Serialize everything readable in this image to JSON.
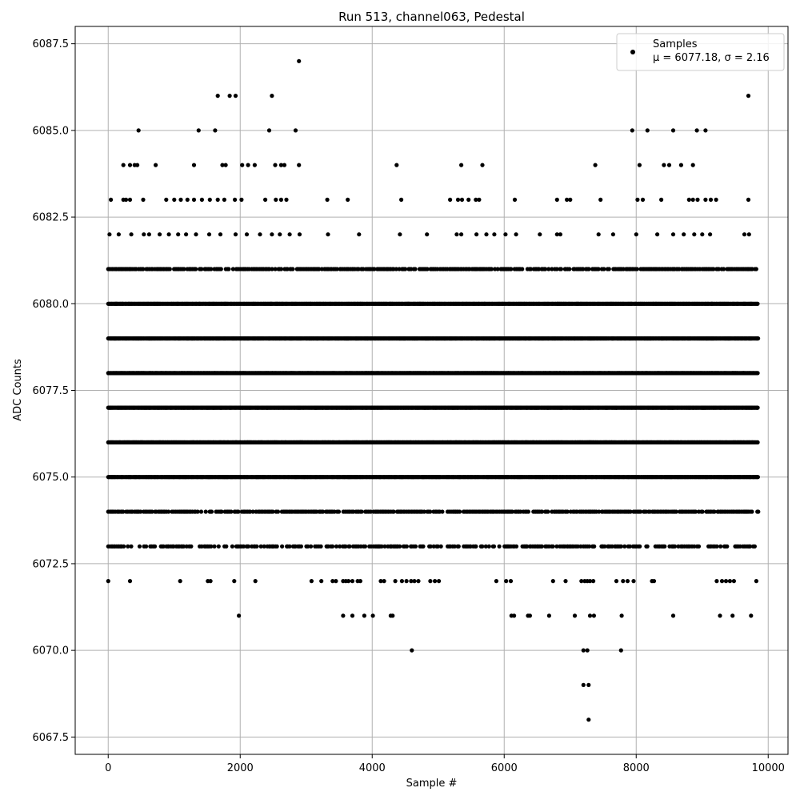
{
  "chart_data": {
    "type": "scatter",
    "title": "Run 513, channel063, Pedestal",
    "xlabel": "Sample #",
    "ylabel": "ADC Counts",
    "xlim": [
      -500,
      10300
    ],
    "ylim": [
      6067.0,
      6088.0
    ],
    "xticks": [
      0,
      2000,
      4000,
      6000,
      8000,
      10000
    ],
    "xtick_labels": [
      "0",
      "2000",
      "4000",
      "6000",
      "8000",
      "10000"
    ],
    "yticks": [
      6067.5,
      6070.0,
      6072.5,
      6075.0,
      6077.5,
      6080.0,
      6082.5,
      6085.0,
      6087.5
    ],
    "ytick_labels": [
      "6067.5",
      "6070.0",
      "6072.5",
      "6075.0",
      "6077.5",
      "6080.0",
      "6082.5",
      "6085.0",
      "6087.5"
    ],
    "grid": true,
    "legend": {
      "placement": "top-right",
      "entries": [
        {
          "line1": "Samples",
          "line2": "μ = 6077.18, σ = 2.16"
        }
      ]
    },
    "series": [
      {
        "name": "Samples",
        "color": "#000000",
        "x_range": [
          0,
          9850
        ],
        "dense_levels": [
          6073,
          6074,
          6075,
          6076,
          6077,
          6078,
          6079,
          6080,
          6081
        ],
        "points": [
          [
            0,
            6072
          ],
          [
            330,
            6072
          ],
          [
            1090,
            6072
          ],
          [
            1510,
            6072
          ],
          [
            1550,
            6072
          ],
          [
            1910,
            6072
          ],
          [
            2230,
            6072
          ],
          [
            3080,
            6072
          ],
          [
            3230,
            6072
          ],
          [
            3400,
            6072
          ],
          [
            3450,
            6072
          ],
          [
            3560,
            6072
          ],
          [
            3600,
            6072
          ],
          [
            3640,
            6072
          ],
          [
            3700,
            6072
          ],
          [
            3780,
            6072
          ],
          [
            3820,
            6072
          ],
          [
            4130,
            6072
          ],
          [
            4180,
            6072
          ],
          [
            4350,
            6072
          ],
          [
            4450,
            6072
          ],
          [
            4520,
            6072
          ],
          [
            4590,
            6072
          ],
          [
            4640,
            6072
          ],
          [
            4700,
            6072
          ],
          [
            4880,
            6072
          ],
          [
            4950,
            6072
          ],
          [
            5010,
            6072
          ],
          [
            5880,
            6072
          ],
          [
            6030,
            6072
          ],
          [
            6100,
            6072
          ],
          [
            6740,
            6072
          ],
          [
            6930,
            6072
          ],
          [
            7170,
            6072
          ],
          [
            7220,
            6072
          ],
          [
            7260,
            6072
          ],
          [
            7300,
            6072
          ],
          [
            7350,
            6072
          ],
          [
            7700,
            6072
          ],
          [
            7800,
            6072
          ],
          [
            7870,
            6072
          ],
          [
            7960,
            6072
          ],
          [
            8240,
            6072
          ],
          [
            8270,
            6072
          ],
          [
            9220,
            6072
          ],
          [
            9300,
            6072
          ],
          [
            9360,
            6072
          ],
          [
            9420,
            6072
          ],
          [
            9480,
            6072
          ],
          [
            9820,
            6072
          ],
          [
            1980,
            6071
          ],
          [
            3560,
            6071
          ],
          [
            3700,
            6071
          ],
          [
            3880,
            6071
          ],
          [
            4010,
            6071
          ],
          [
            4280,
            6071
          ],
          [
            4310,
            6071
          ],
          [
            6110,
            6071
          ],
          [
            6150,
            6071
          ],
          [
            6360,
            6071
          ],
          [
            6390,
            6071
          ],
          [
            6680,
            6071
          ],
          [
            7070,
            6071
          ],
          [
            7300,
            6071
          ],
          [
            7360,
            6071
          ],
          [
            7780,
            6071
          ],
          [
            8560,
            6071
          ],
          [
            9270,
            6071
          ],
          [
            9460,
            6071
          ],
          [
            9740,
            6071
          ],
          [
            4600,
            6070
          ],
          [
            7200,
            6070
          ],
          [
            7260,
            6070
          ],
          [
            7770,
            6070
          ],
          [
            7200,
            6069
          ],
          [
            7280,
            6069
          ],
          [
            7280,
            6068
          ],
          [
            20,
            6082
          ],
          [
            160,
            6082
          ],
          [
            350,
            6082
          ],
          [
            540,
            6082
          ],
          [
            620,
            6082
          ],
          [
            780,
            6082
          ],
          [
            920,
            6082
          ],
          [
            1060,
            6082
          ],
          [
            1180,
            6082
          ],
          [
            1330,
            6082
          ],
          [
            1530,
            6082
          ],
          [
            1700,
            6082
          ],
          [
            1930,
            6082
          ],
          [
            2100,
            6082
          ],
          [
            2300,
            6082
          ],
          [
            2480,
            6082
          ],
          [
            2600,
            6082
          ],
          [
            2750,
            6082
          ],
          [
            2900,
            6082
          ],
          [
            3330,
            6082
          ],
          [
            3800,
            6082
          ],
          [
            4420,
            6082
          ],
          [
            4830,
            6082
          ],
          [
            5280,
            6082
          ],
          [
            5350,
            6082
          ],
          [
            5580,
            6082
          ],
          [
            5730,
            6082
          ],
          [
            5850,
            6082
          ],
          [
            6020,
            6082
          ],
          [
            6180,
            6082
          ],
          [
            6540,
            6082
          ],
          [
            6800,
            6082
          ],
          [
            6850,
            6082
          ],
          [
            7430,
            6082
          ],
          [
            7650,
            6082
          ],
          [
            8000,
            6082
          ],
          [
            8320,
            6082
          ],
          [
            8560,
            6082
          ],
          [
            8720,
            6082
          ],
          [
            8880,
            6082
          ],
          [
            9000,
            6082
          ],
          [
            9120,
            6082
          ],
          [
            9640,
            6082
          ],
          [
            9710,
            6082
          ],
          [
            40,
            6083
          ],
          [
            230,
            6083
          ],
          [
            270,
            6083
          ],
          [
            330,
            6083
          ],
          [
            530,
            6083
          ],
          [
            880,
            6083
          ],
          [
            1000,
            6083
          ],
          [
            1100,
            6083
          ],
          [
            1200,
            6083
          ],
          [
            1300,
            6083
          ],
          [
            1420,
            6083
          ],
          [
            1540,
            6083
          ],
          [
            1660,
            6083
          ],
          [
            1760,
            6083
          ],
          [
            1920,
            6083
          ],
          [
            2020,
            6083
          ],
          [
            2380,
            6083
          ],
          [
            2540,
            6083
          ],
          [
            2620,
            6083
          ],
          [
            2700,
            6083
          ],
          [
            3320,
            6083
          ],
          [
            3630,
            6083
          ],
          [
            4440,
            6083
          ],
          [
            5180,
            6083
          ],
          [
            5300,
            6083
          ],
          [
            5360,
            6083
          ],
          [
            5460,
            6083
          ],
          [
            5570,
            6083
          ],
          [
            5620,
            6083
          ],
          [
            6160,
            6083
          ],
          [
            6800,
            6083
          ],
          [
            6950,
            6083
          ],
          [
            7000,
            6083
          ],
          [
            7460,
            6083
          ],
          [
            8020,
            6083
          ],
          [
            8100,
            6083
          ],
          [
            8380,
            6083
          ],
          [
            8800,
            6083
          ],
          [
            8860,
            6083
          ],
          [
            8930,
            6083
          ],
          [
            9050,
            6083
          ],
          [
            9130,
            6083
          ],
          [
            9210,
            6083
          ],
          [
            9700,
            6083
          ],
          [
            230,
            6084
          ],
          [
            330,
            6084
          ],
          [
            400,
            6084
          ],
          [
            440,
            6084
          ],
          [
            720,
            6084
          ],
          [
            1300,
            6084
          ],
          [
            1730,
            6084
          ],
          [
            1780,
            6084
          ],
          [
            2030,
            6084
          ],
          [
            2120,
            6084
          ],
          [
            2220,
            6084
          ],
          [
            2530,
            6084
          ],
          [
            2620,
            6084
          ],
          [
            2670,
            6084
          ],
          [
            2890,
            6084
          ],
          [
            4370,
            6084
          ],
          [
            5350,
            6084
          ],
          [
            5670,
            6084
          ],
          [
            7380,
            6084
          ],
          [
            8050,
            6084
          ],
          [
            8420,
            6084
          ],
          [
            8500,
            6084
          ],
          [
            8680,
            6084
          ],
          [
            8860,
            6084
          ],
          [
            460,
            6085
          ],
          [
            1370,
            6085
          ],
          [
            1620,
            6085
          ],
          [
            2440,
            6085
          ],
          [
            2840,
            6085
          ],
          [
            7940,
            6085
          ],
          [
            8170,
            6085
          ],
          [
            8560,
            6085
          ],
          [
            8920,
            6085
          ],
          [
            9050,
            6085
          ],
          [
            1660,
            6086
          ],
          [
            1840,
            6086
          ],
          [
            1930,
            6086
          ],
          [
            2480,
            6086
          ],
          [
            9700,
            6086
          ],
          [
            2890,
            6087
          ]
        ]
      }
    ]
  }
}
